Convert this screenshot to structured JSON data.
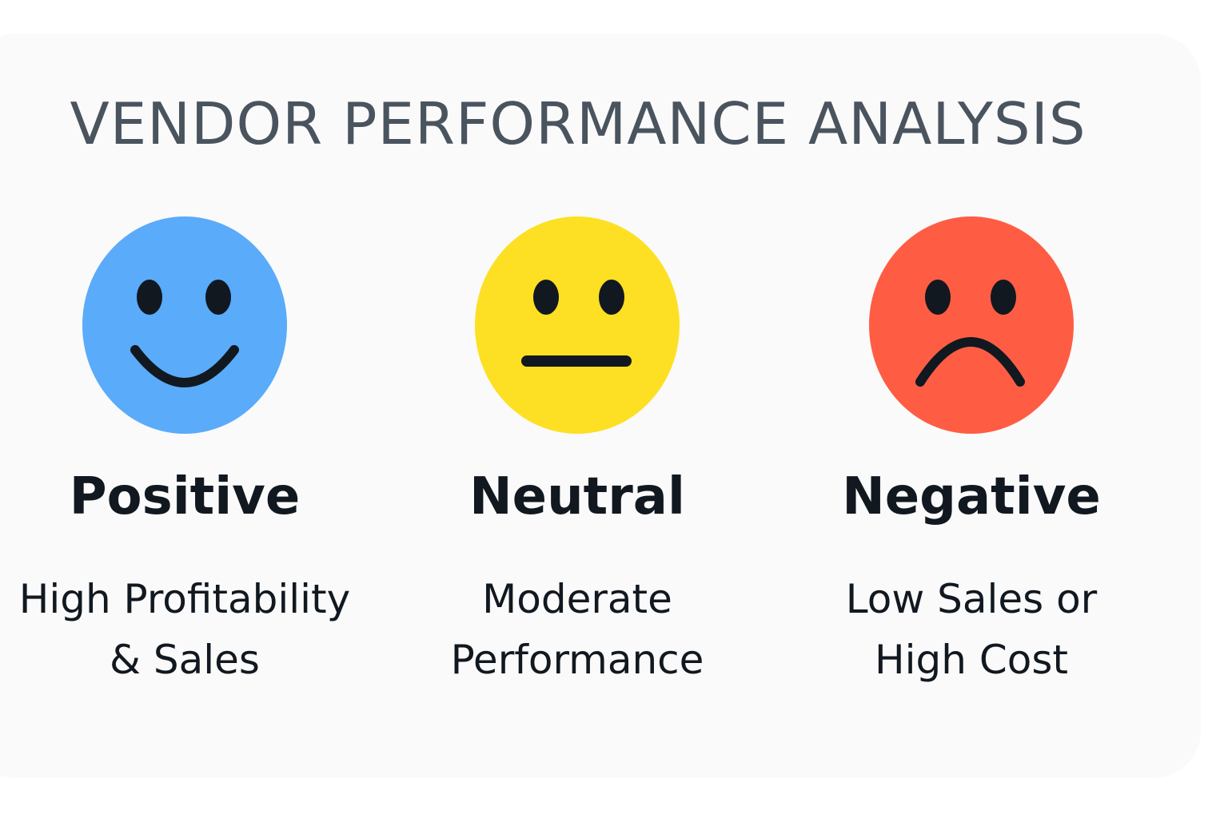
{
  "title": "VENDOR PERFORMANCE ANALYSIS",
  "categories": [
    {
      "label": "Positive",
      "description_lines": [
        "High Profitability",
        "& Sales"
      ],
      "icon": "smiling-face-icon",
      "color": "#5aabfa"
    },
    {
      "label": "Neutral",
      "description_lines": [
        "Moderate",
        "Performance"
      ],
      "icon": "neutral-face-icon",
      "color": "#fde023"
    },
    {
      "label": "Negative",
      "description_lines": [
        "Low Sales or",
        "High Cost"
      ],
      "icon": "frowning-face-icon",
      "color": "#fe5d44"
    }
  ],
  "colors": {
    "background": "#fafafa",
    "title": "#4a545e",
    "text": "#111820",
    "face_features": "#111820"
  }
}
